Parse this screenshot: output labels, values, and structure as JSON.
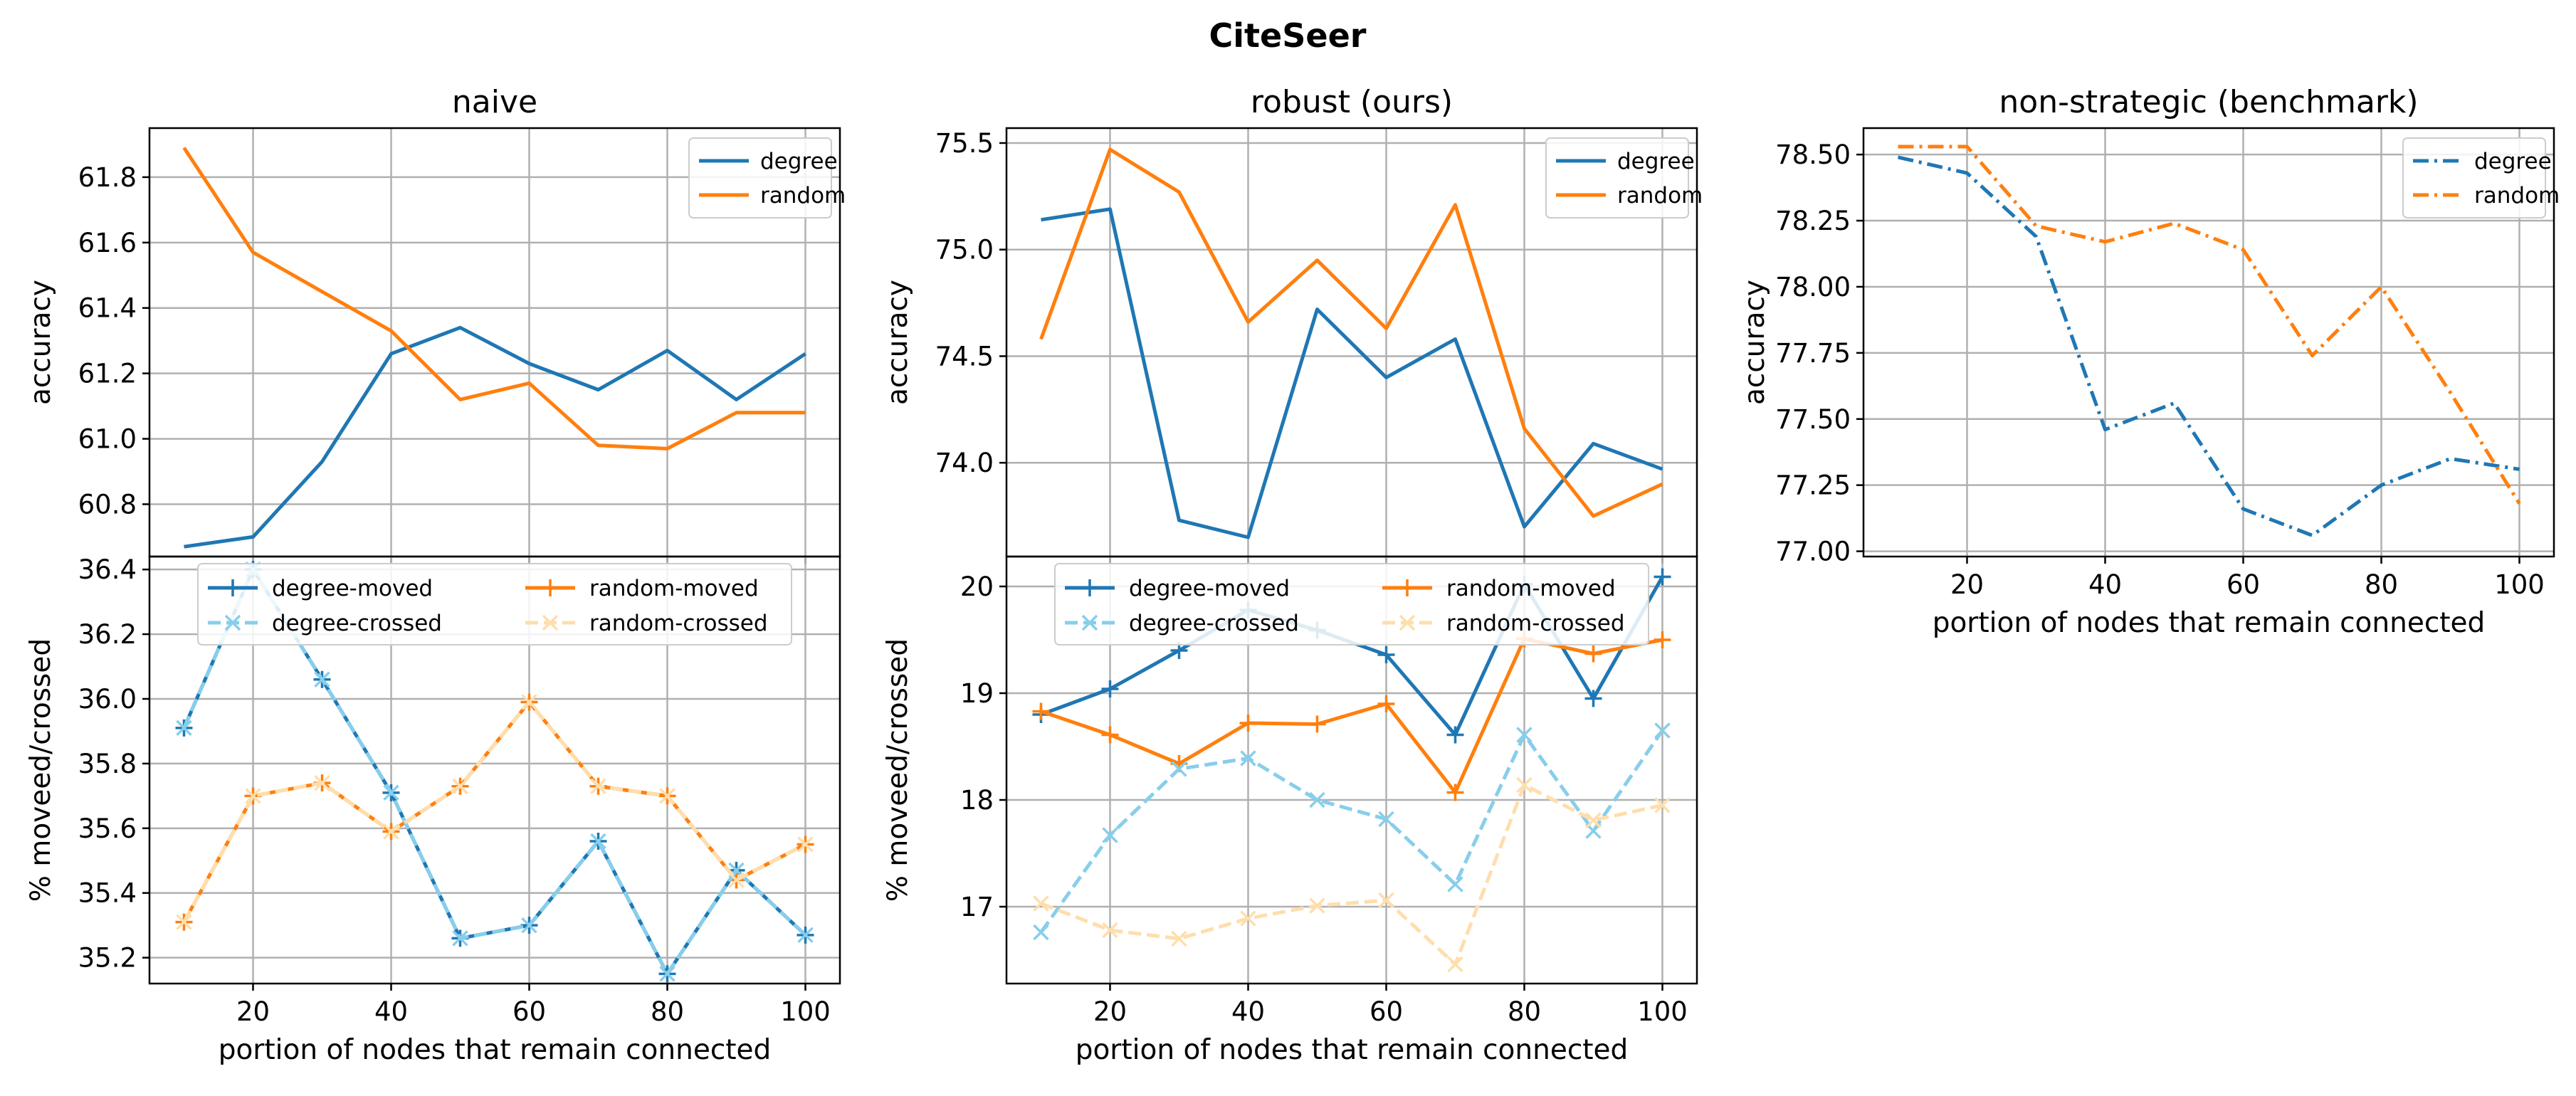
{
  "figure_title": "CiteSeer",
  "colors": {
    "degree": "#1f77b4",
    "random": "#ff7f0e",
    "degree_crossed": "#87ceeb",
    "random_crossed": "#ffdead",
    "grid": "#b0b0b0"
  },
  "chart_data": [
    {
      "id": "naive_top",
      "type": "line",
      "title": "naive",
      "xlabel": "",
      "ylabel": "accuracy",
      "x": [
        10,
        20,
        30,
        40,
        50,
        60,
        70,
        80,
        90,
        100
      ],
      "xlim": [
        5,
        105
      ],
      "ylim": [
        60.64,
        61.95
      ],
      "xticks": [
        20,
        40,
        60,
        80,
        100
      ],
      "yticks": [
        60.8,
        61.0,
        61.2,
        61.4,
        61.6,
        61.8
      ],
      "tick_decimals": 1,
      "show_xticklabels": false,
      "grid": true,
      "legend": "top-right",
      "series": [
        {
          "name": "degree",
          "values": [
            60.67,
            60.7,
            60.93,
            61.26,
            61.34,
            61.23,
            61.15,
            61.27,
            61.12,
            61.26
          ],
          "style": "solid",
          "color": "#1f77b4"
        },
        {
          "name": "random",
          "values": [
            61.89,
            61.57,
            61.45,
            61.33,
            61.12,
            61.17,
            60.98,
            60.97,
            61.08,
            61.08
          ],
          "style": "solid",
          "color": "#ff7f0e"
        }
      ]
    },
    {
      "id": "naive_bottom",
      "type": "line",
      "title": "",
      "xlabel": "portion of nodes that remain connected",
      "ylabel": "% moveed/crossed",
      "x": [
        10,
        20,
        30,
        40,
        50,
        60,
        70,
        80,
        90,
        100
      ],
      "xlim": [
        5,
        105
      ],
      "ylim": [
        35.12,
        36.44
      ],
      "xticks": [
        20,
        40,
        60,
        80,
        100
      ],
      "yticks": [
        35.2,
        35.4,
        35.6,
        35.8,
        36.0,
        36.2,
        36.4
      ],
      "tick_decimals": 1,
      "show_xticklabels": true,
      "grid": true,
      "legend": "top-two-columns",
      "series": [
        {
          "name": "degree-moved",
          "values": [
            35.91,
            36.4,
            36.06,
            35.71,
            35.26,
            35.3,
            35.56,
            35.15,
            35.47,
            35.27
          ],
          "style": "solid",
          "marker": "plus",
          "color": "#1f77b4"
        },
        {
          "name": "random-moved",
          "values": [
            35.31,
            35.7,
            35.74,
            35.59,
            35.73,
            35.99,
            35.73,
            35.7,
            35.44,
            35.55
          ],
          "style": "solid",
          "marker": "plus",
          "color": "#ff7f0e"
        },
        {
          "name": "degree-crossed",
          "values": [
            35.91,
            36.4,
            36.06,
            35.71,
            35.26,
            35.3,
            35.56,
            35.15,
            35.47,
            35.27
          ],
          "style": "dashed",
          "marker": "x",
          "color": "#87ceeb"
        },
        {
          "name": "random-crossed",
          "values": [
            35.31,
            35.7,
            35.74,
            35.59,
            35.73,
            35.99,
            35.73,
            35.7,
            35.44,
            35.55
          ],
          "style": "dashed",
          "marker": "x",
          "color": "#ffdead"
        }
      ]
    },
    {
      "id": "robust_top",
      "type": "line",
      "title": "robust (ours)",
      "xlabel": "",
      "ylabel": "accuracy",
      "x": [
        10,
        20,
        30,
        40,
        50,
        60,
        70,
        80,
        90,
        100
      ],
      "xlim": [
        5,
        105
      ],
      "ylim": [
        73.56,
        75.57
      ],
      "xticks": [
        20,
        40,
        60,
        80,
        100
      ],
      "yticks": [
        74.0,
        74.5,
        75.0,
        75.5
      ],
      "tick_decimals": 1,
      "show_xticklabels": false,
      "grid": true,
      "legend": "top-right",
      "series": [
        {
          "name": "degree",
          "values": [
            75.14,
            75.19,
            73.73,
            73.65,
            74.72,
            74.4,
            74.58,
            73.7,
            74.09,
            73.97
          ],
          "style": "solid",
          "color": "#1f77b4"
        },
        {
          "name": "random",
          "values": [
            74.58,
            75.47,
            75.27,
            74.66,
            74.95,
            74.63,
            75.21,
            74.16,
            73.75,
            73.9
          ],
          "style": "solid",
          "color": "#ff7f0e"
        }
      ]
    },
    {
      "id": "robust_bottom",
      "type": "line",
      "title": "",
      "xlabel": "portion of nodes that remain connected",
      "ylabel": "% moveed/crossed",
      "x": [
        10,
        20,
        30,
        40,
        50,
        60,
        70,
        80,
        90,
        100
      ],
      "xlim": [
        5,
        105
      ],
      "ylim": [
        16.28,
        20.28
      ],
      "xticks": [
        20,
        40,
        60,
        80,
        100
      ],
      "yticks": [
        17,
        18,
        19,
        20
      ],
      "tick_decimals": 0,
      "show_xticklabels": true,
      "grid": true,
      "legend": "top-two-columns",
      "series": [
        {
          "name": "degree-moved",
          "values": [
            18.8,
            19.04,
            19.4,
            19.78,
            19.59,
            19.36,
            18.61,
            20.02,
            18.95,
            20.09
          ],
          "style": "solid",
          "marker": "plus",
          "color": "#1f77b4"
        },
        {
          "name": "random-moved",
          "values": [
            18.83,
            18.61,
            18.34,
            18.72,
            18.71,
            18.9,
            18.07,
            19.51,
            19.37,
            19.5
          ],
          "style": "solid",
          "marker": "plus",
          "color": "#ff7f0e"
        },
        {
          "name": "degree-crossed",
          "values": [
            16.76,
            17.67,
            18.29,
            18.39,
            18.0,
            17.82,
            17.21,
            18.61,
            17.71,
            18.65
          ],
          "style": "dashed",
          "marker": "x",
          "color": "#87ceeb"
        },
        {
          "name": "random-crossed",
          "values": [
            17.03,
            16.78,
            16.7,
            16.89,
            17.01,
            17.06,
            16.46,
            18.14,
            17.81,
            17.95
          ],
          "style": "dashed",
          "marker": "x",
          "color": "#ffdead"
        }
      ]
    },
    {
      "id": "nonstrategic",
      "type": "line",
      "title": "non-strategic (benchmark)",
      "xlabel": "portion of nodes that remain connected",
      "ylabel": "accuracy",
      "x": [
        10,
        20,
        30,
        40,
        50,
        60,
        70,
        80,
        90,
        100
      ],
      "xlim": [
        5,
        105
      ],
      "ylim": [
        76.98,
        78.6
      ],
      "xticks": [
        20,
        40,
        60,
        80,
        100
      ],
      "yticks": [
        77.0,
        77.25,
        77.5,
        77.75,
        78.0,
        78.25,
        78.5
      ],
      "tick_decimals": 2,
      "show_xticklabels": true,
      "grid": true,
      "legend": "top-right",
      "series": [
        {
          "name": "degree",
          "values": [
            78.49,
            78.43,
            78.19,
            77.46,
            77.56,
            77.16,
            77.06,
            77.25,
            77.35,
            77.31
          ],
          "style": "dashdot",
          "color": "#1f77b4"
        },
        {
          "name": "random",
          "values": [
            78.53,
            78.53,
            78.23,
            78.17,
            78.24,
            78.14,
            77.74,
            78.0,
            77.6,
            77.18
          ],
          "style": "dashdot",
          "color": "#ff7f0e"
        }
      ]
    }
  ]
}
